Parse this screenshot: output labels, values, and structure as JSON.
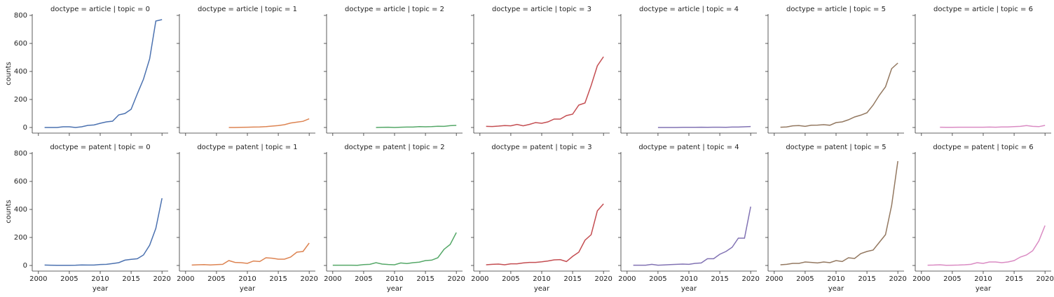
{
  "chart_data": [
    {
      "type": "line",
      "title": "doctype = article | topic = 0",
      "ylabel": "counts",
      "x": [
        2001,
        2002,
        2003,
        2004,
        2005,
        2006,
        2007,
        2008,
        2009,
        2010,
        2011,
        2012,
        2013,
        2014,
        2015,
        2016,
        2017,
        2018,
        2019,
        2020
      ],
      "values": [
        0,
        0,
        0,
        5,
        5,
        0,
        5,
        15,
        18,
        30,
        40,
        45,
        90,
        100,
        130,
        240,
        345,
        490,
        760,
        770
      ],
      "color": "#4c72b0",
      "xlim": [
        1999,
        2021
      ],
      "xticks": [
        2000,
        2005,
        2010,
        2015,
        2020
      ],
      "ylim": [
        -40,
        810
      ],
      "yticks": [
        0,
        200,
        400,
        600,
        800
      ]
    },
    {
      "type": "line",
      "title": "doctype = article | topic = 1",
      "x": [
        2007,
        2008,
        2009,
        2010,
        2011,
        2012,
        2013,
        2014,
        2015,
        2016,
        2017,
        2018,
        2019,
        2020
      ],
      "values": [
        0,
        0,
        1,
        2,
        3,
        4,
        6,
        10,
        14,
        20,
        32,
        38,
        44,
        62
      ],
      "color": "#dd8452",
      "xlim": [
        1999,
        2021
      ],
      "xticks": [
        2000,
        2005,
        2010,
        2015,
        2020
      ],
      "ylim": [
        -40,
        810
      ],
      "yticks": [
        0,
        200,
        400,
        600,
        800
      ]
    },
    {
      "type": "line",
      "title": "doctype = article | topic = 2",
      "x": [
        2007,
        2008,
        2009,
        2010,
        2011,
        2012,
        2013,
        2014,
        2015,
        2016,
        2017,
        2018,
        2019,
        2020
      ],
      "values": [
        0,
        1,
        2,
        0,
        2,
        3,
        3,
        6,
        5,
        6,
        9,
        8,
        13,
        15
      ],
      "color": "#55a868",
      "xlim": [
        1999,
        2021
      ],
      "xticks": [
        2000,
        2005,
        2010,
        2015,
        2020
      ],
      "ylim": [
        -40,
        810
      ],
      "yticks": [
        0,
        200,
        400,
        600,
        800
      ]
    },
    {
      "type": "line",
      "title": "doctype = article | topic = 3",
      "x": [
        2001,
        2002,
        2003,
        2004,
        2005,
        2006,
        2007,
        2008,
        2009,
        2010,
        2011,
        2012,
        2013,
        2014,
        2015,
        2016,
        2017,
        2018,
        2019,
        2020
      ],
      "values": [
        8,
        7,
        10,
        14,
        12,
        22,
        12,
        22,
        35,
        30,
        40,
        60,
        60,
        85,
        95,
        160,
        175,
        300,
        440,
        505
      ],
      "color": "#c44e52",
      "xlim": [
        1999,
        2021
      ],
      "xticks": [
        2000,
        2005,
        2010,
        2015,
        2020
      ],
      "ylim": [
        -40,
        810
      ],
      "yticks": [
        0,
        200,
        400,
        600,
        800
      ]
    },
    {
      "type": "line",
      "title": "doctype = article | topic = 4",
      "x": [
        2005,
        2006,
        2007,
        2008,
        2009,
        2010,
        2011,
        2012,
        2013,
        2014,
        2015,
        2016,
        2017,
        2018,
        2019,
        2020
      ],
      "values": [
        0,
        0,
        0,
        0,
        1,
        1,
        1,
        2,
        1,
        2,
        2,
        1,
        3,
        3,
        5,
        7
      ],
      "color": "#8172b3",
      "xlim": [
        1999,
        2021
      ],
      "xticks": [
        2000,
        2005,
        2010,
        2015,
        2020
      ],
      "ylim": [
        -40,
        810
      ],
      "yticks": [
        0,
        200,
        400,
        600,
        800
      ]
    },
    {
      "type": "line",
      "title": "doctype = article | topic = 5",
      "x": [
        2001,
        2002,
        2003,
        2004,
        2005,
        2006,
        2007,
        2008,
        2009,
        2010,
        2011,
        2012,
        2013,
        2014,
        2015,
        2016,
        2017,
        2018,
        2019,
        2020
      ],
      "values": [
        2,
        4,
        12,
        14,
        8,
        16,
        17,
        20,
        16,
        35,
        40,
        55,
        75,
        88,
        105,
        160,
        230,
        290,
        420,
        460
      ],
      "color": "#937860",
      "xlim": [
        1999,
        2021
      ],
      "xticks": [
        2000,
        2005,
        2010,
        2015,
        2020
      ],
      "ylim": [
        -40,
        810
      ],
      "yticks": [
        0,
        200,
        400,
        600,
        800
      ]
    },
    {
      "type": "line",
      "title": "doctype = article | topic = 6",
      "x": [
        2003,
        2004,
        2005,
        2006,
        2007,
        2008,
        2009,
        2010,
        2011,
        2012,
        2013,
        2014,
        2015,
        2016,
        2017,
        2018,
        2019,
        2020
      ],
      "values": [
        2,
        1,
        1,
        2,
        2,
        2,
        2,
        2,
        3,
        2,
        4,
        4,
        6,
        8,
        14,
        8,
        6,
        15
      ],
      "color": "#da8bc3",
      "xlim": [
        1999,
        2021
      ],
      "xticks": [
        2000,
        2005,
        2010,
        2015,
        2020
      ],
      "ylim": [
        -40,
        810
      ],
      "yticks": [
        0,
        200,
        400,
        600,
        800
      ]
    },
    {
      "type": "line",
      "title": "doctype = patent | topic = 0",
      "xlabel": "year",
      "ylabel": "counts",
      "x": [
        2001,
        2002,
        2003,
        2004,
        2005,
        2006,
        2007,
        2008,
        2009,
        2010,
        2011,
        2012,
        2013,
        2014,
        2015,
        2016,
        2017,
        2018,
        2019,
        2020
      ],
      "values": [
        3,
        2,
        1,
        1,
        1,
        2,
        4,
        3,
        3,
        7,
        8,
        14,
        20,
        38,
        44,
        48,
        75,
        145,
        265,
        480
      ],
      "color": "#4c72b0",
      "xlim": [
        1999,
        2021
      ],
      "xticks": [
        2000,
        2005,
        2010,
        2015,
        2020
      ],
      "ylim": [
        -40,
        810
      ],
      "yticks": [
        0,
        200,
        400,
        600,
        800
      ]
    },
    {
      "type": "line",
      "title": "doctype = patent | topic = 1",
      "xlabel": "year",
      "x": [
        2001,
        2002,
        2003,
        2004,
        2005,
        2006,
        2007,
        2008,
        2009,
        2010,
        2011,
        2012,
        2013,
        2014,
        2015,
        2016,
        2017,
        2018,
        2019,
        2020
      ],
      "values": [
        3,
        5,
        6,
        4,
        6,
        8,
        35,
        22,
        20,
        15,
        32,
        28,
        55,
        52,
        45,
        45,
        60,
        95,
        100,
        160
      ],
      "color": "#dd8452",
      "xlim": [
        1999,
        2021
      ],
      "xticks": [
        2000,
        2005,
        2010,
        2015,
        2020
      ],
      "ylim": [
        -40,
        810
      ],
      "yticks": [
        0,
        200,
        400,
        600,
        800
      ]
    },
    {
      "type": "line",
      "title": "doctype = patent | topic = 2",
      "xlabel": "year",
      "x": [
        2000,
        2001,
        2002,
        2003,
        2004,
        2005,
        2006,
        2007,
        2008,
        2009,
        2010,
        2011,
        2012,
        2013,
        2014,
        2015,
        2016,
        2017,
        2018,
        2019,
        2020
      ],
      "values": [
        2,
        2,
        2,
        2,
        1,
        6,
        8,
        20,
        10,
        7,
        5,
        18,
        14,
        20,
        24,
        35,
        38,
        55,
        115,
        150,
        235
      ],
      "color": "#55a868",
      "xlim": [
        1999,
        2021
      ],
      "xticks": [
        2000,
        2005,
        2010,
        2015,
        2020
      ],
      "ylim": [
        -40,
        810
      ],
      "yticks": [
        0,
        200,
        400,
        600,
        800
      ]
    },
    {
      "type": "line",
      "title": "doctype = patent | topic = 3",
      "xlabel": "year",
      "x": [
        2001,
        2002,
        2003,
        2004,
        2005,
        2006,
        2007,
        2008,
        2009,
        2010,
        2011,
        2012,
        2013,
        2014,
        2015,
        2016,
        2017,
        2018,
        2019,
        2020
      ],
      "values": [
        5,
        8,
        10,
        5,
        12,
        12,
        18,
        22,
        22,
        26,
        32,
        40,
        42,
        28,
        65,
        95,
        180,
        220,
        390,
        440
      ],
      "color": "#c44e52",
      "xlim": [
        1999,
        2021
      ],
      "xticks": [
        2000,
        2005,
        2010,
        2015,
        2020
      ],
      "ylim": [
        -40,
        810
      ],
      "yticks": [
        0,
        200,
        400,
        600,
        800
      ]
    },
    {
      "type": "line",
      "title": "doctype = patent | topic = 4",
      "xlabel": "year",
      "x": [
        2001,
        2002,
        2003,
        2004,
        2005,
        2006,
        2007,
        2008,
        2009,
        2010,
        2011,
        2012,
        2013,
        2014,
        2015,
        2016,
        2017,
        2018,
        2019,
        2020
      ],
      "values": [
        2,
        2,
        2,
        8,
        2,
        4,
        6,
        8,
        10,
        8,
        15,
        18,
        48,
        48,
        80,
        100,
        130,
        195,
        195,
        420
      ],
      "color": "#8172b3",
      "xlim": [
        1999,
        2021
      ],
      "xticks": [
        2000,
        2005,
        2010,
        2015,
        2020
      ],
      "ylim": [
        -40,
        810
      ],
      "yticks": [
        0,
        200,
        400,
        600,
        800
      ]
    },
    {
      "type": "line",
      "title": "doctype = patent | topic = 5",
      "xlabel": "year",
      "x": [
        2001,
        2002,
        2003,
        2004,
        2005,
        2006,
        2007,
        2008,
        2009,
        2010,
        2011,
        2012,
        2013,
        2014,
        2015,
        2016,
        2017,
        2018,
        2019,
        2020
      ],
      "values": [
        5,
        8,
        15,
        15,
        25,
        22,
        18,
        25,
        20,
        35,
        28,
        55,
        50,
        85,
        100,
        110,
        165,
        220,
        430,
        745
      ],
      "color": "#937860",
      "xlim": [
        1999,
        2021
      ],
      "xticks": [
        2000,
        2005,
        2010,
        2015,
        2020
      ],
      "ylim": [
        -40,
        810
      ],
      "yticks": [
        0,
        200,
        400,
        600,
        800
      ]
    },
    {
      "type": "line",
      "title": "doctype = patent | topic = 6",
      "xlabel": "year",
      "x": [
        2001,
        2002,
        2003,
        2004,
        2005,
        2006,
        2007,
        2008,
        2009,
        2010,
        2011,
        2012,
        2013,
        2014,
        2015,
        2016,
        2017,
        2018,
        2019,
        2020
      ],
      "values": [
        2,
        3,
        5,
        1,
        2,
        3,
        5,
        8,
        20,
        15,
        25,
        25,
        20,
        25,
        35,
        60,
        75,
        105,
        175,
        285
      ],
      "color": "#da8bc3",
      "xlim": [
        1999,
        2021
      ],
      "xticks": [
        2000,
        2005,
        2010,
        2015,
        2020
      ],
      "ylim": [
        -40,
        810
      ],
      "yticks": [
        0,
        200,
        400,
        600,
        800
      ]
    }
  ]
}
